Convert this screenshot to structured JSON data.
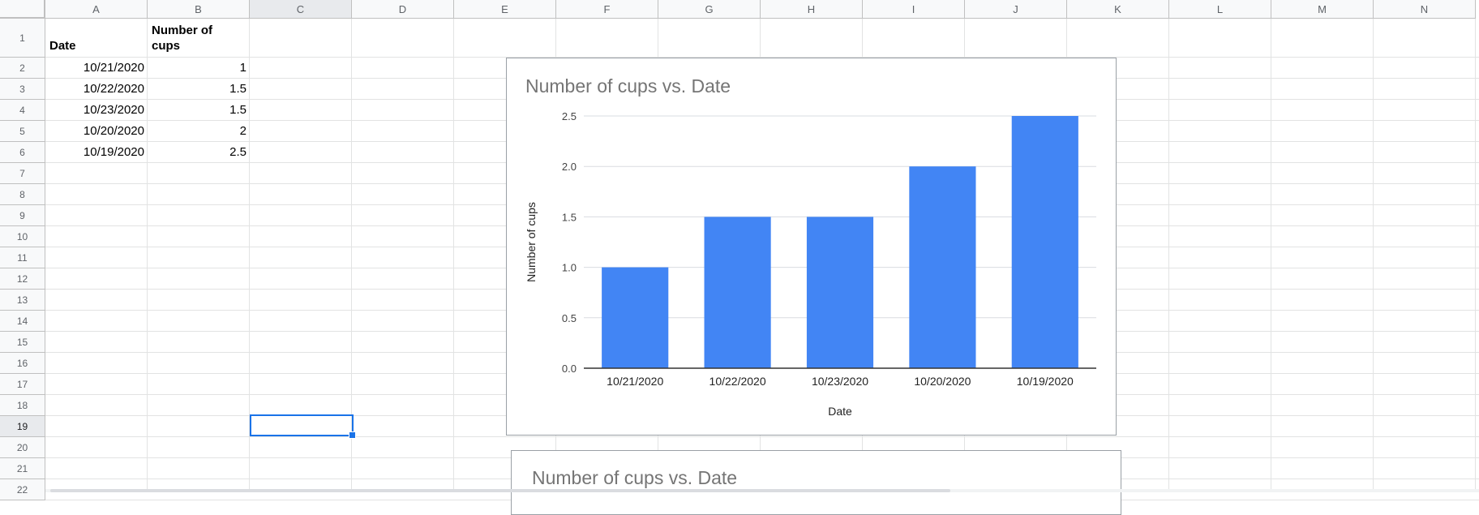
{
  "columns": [
    "A",
    "B",
    "C",
    "D",
    "E",
    "F",
    "G",
    "H",
    "I",
    "J",
    "K",
    "L",
    "M",
    "N"
  ],
  "rows": [
    "1",
    "2",
    "3",
    "4",
    "5",
    "6",
    "7",
    "8",
    "9",
    "10",
    "11",
    "12",
    "13",
    "14",
    "15",
    "16",
    "17",
    "18",
    "19",
    "20",
    "21",
    "22"
  ],
  "selected_cell": "C19",
  "sheet": {
    "header": {
      "date": "Date",
      "cups_line1": "Number of",
      "cups_line2": "cups"
    },
    "rows": [
      {
        "date": "10/21/2020",
        "cups": "1"
      },
      {
        "date": "10/22/2020",
        "cups": "1.5"
      },
      {
        "date": "10/23/2020",
        "cups": "1.5"
      },
      {
        "date": "10/20/2020",
        "cups": "2"
      },
      {
        "date": "10/19/2020",
        "cups": "2.5"
      }
    ]
  },
  "chart_data": [
    {
      "type": "bar",
      "title": "Number of cups vs. Date",
      "xlabel": "Date",
      "ylabel": "Number of cups",
      "categories": [
        "10/21/2020",
        "10/22/2020",
        "10/23/2020",
        "10/20/2020",
        "10/19/2020"
      ],
      "values": [
        1,
        1.5,
        1.5,
        2,
        2.5
      ],
      "ylim": [
        0,
        2.5
      ],
      "yticks": [
        "0.0",
        "0.5",
        "1.0",
        "1.5",
        "2.0",
        "2.5"
      ],
      "grid": true,
      "color": "#4285f4"
    },
    {
      "type": "bar",
      "title": "Number of cups vs. Date"
    }
  ],
  "colors": {
    "bar": "#4285f4",
    "selection": "#1a73e8",
    "gridline": "#e2e3e3"
  }
}
